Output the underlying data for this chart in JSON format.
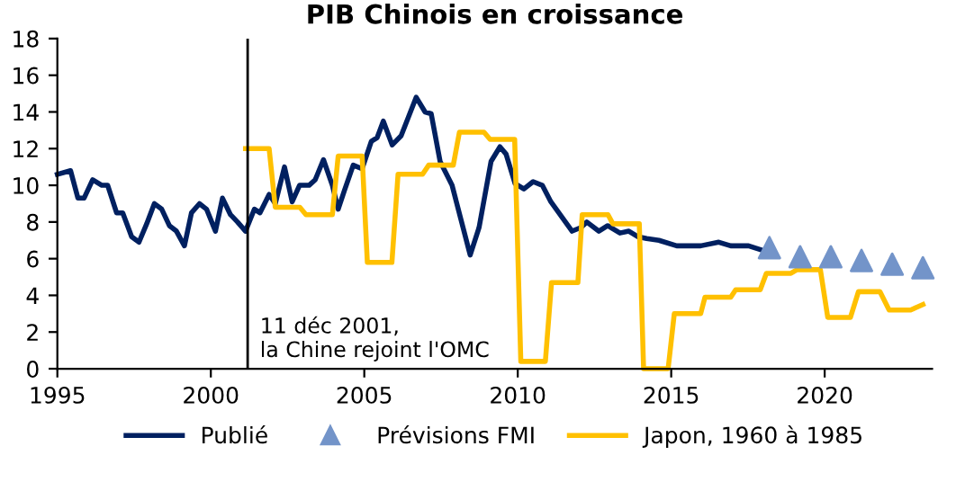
{
  "chart_data": {
    "type": "line",
    "title": "PIB Chinois en croissance",
    "xlim": [
      1995,
      2023.5
    ],
    "xticks": [
      1995,
      2000,
      2005,
      2010,
      2015,
      2020
    ],
    "ylim": [
      0,
      18
    ],
    "yticks": [
      0,
      2,
      4,
      6,
      8,
      10,
      12,
      14,
      16,
      18
    ],
    "grid": false,
    "legend": "bottom",
    "ref_lines": [
      {
        "axis": "x",
        "value": 2001.2,
        "label": "11 déc 2001,\nla Chine rejoint l'OMC",
        "color": "#000000"
      }
    ],
    "series": [
      {
        "name": "Publié",
        "color": "#002060",
        "marker": "none",
        "x": [
          1995.0,
          1995.43,
          1995.67,
          1995.87,
          1996.15,
          1996.45,
          1996.64,
          1996.93,
          1997.13,
          1997.42,
          1997.66,
          1997.91,
          1998.16,
          1998.4,
          1998.65,
          1998.88,
          1999.14,
          1999.37,
          1999.63,
          1999.86,
          2000.15,
          2000.38,
          2000.64,
          2000.87,
          2001.13,
          2001.42,
          2001.6,
          2001.9,
          2002.1,
          2002.4,
          2002.65,
          2002.89,
          2003.2,
          2003.4,
          2003.67,
          2003.96,
          2004.15,
          2004.35,
          2004.64,
          2004.93,
          2005.23,
          2005.42,
          2005.62,
          2005.91,
          2006.2,
          2006.69,
          2006.98,
          2007.18,
          2007.47,
          2007.86,
          2008.45,
          2008.74,
          2009.13,
          2009.42,
          2009.62,
          2009.91,
          2010.2,
          2010.5,
          2010.8,
          2011.08,
          2011.47,
          2011.77,
          2012.06,
          2012.25,
          2012.64,
          2012.93,
          2013.33,
          2013.62,
          2013.91,
          2014.2,
          2014.6,
          2015.18,
          2015.96,
          2016.55,
          2016.94,
          2017.52,
          2017.9
        ],
        "values": [
          10.6,
          10.8,
          9.3,
          9.3,
          10.3,
          10.0,
          10.0,
          8.5,
          8.5,
          7.2,
          6.9,
          7.9,
          9.0,
          8.7,
          7.8,
          7.5,
          6.7,
          8.5,
          9.0,
          8.7,
          7.5,
          9.3,
          8.4,
          8.0,
          7.5,
          8.7,
          8.5,
          9.5,
          9.0,
          11.0,
          9.1,
          10.0,
          10.0,
          10.3,
          11.4,
          10.0,
          8.7,
          9.7,
          11.1,
          10.9,
          12.4,
          12.6,
          13.5,
          12.2,
          12.7,
          14.8,
          14.0,
          13.9,
          11.3,
          10.0,
          6.2,
          7.7,
          11.3,
          12.1,
          11.7,
          10.1,
          9.8,
          10.2,
          10.0,
          9.1,
          8.2,
          7.5,
          7.7,
          8.0,
          7.5,
          7.8,
          7.4,
          7.5,
          7.2,
          7.1,
          7.0,
          6.7,
          6.7,
          6.9,
          6.7,
          6.7,
          6.5
        ]
      },
      {
        "name": "Prévisions FMI",
        "type": "scatter",
        "color": "#7394c9",
        "marker": "triangle",
        "x": [
          2018.2,
          2019.2,
          2020.2,
          2021.2,
          2022.2,
          2023.2
        ],
        "values": [
          6.6,
          6.1,
          6.1,
          5.9,
          5.7,
          5.5
        ]
      },
      {
        "name": "Japon, 1960 à 1985",
        "color": "#ffc000",
        "marker": "none",
        "x": [
          2001.13,
          2001.9,
          2002.1,
          2002.9,
          2003.1,
          2003.96,
          2004.15,
          2004.93,
          2005.1,
          2005.9,
          2006.1,
          2006.9,
          2007.1,
          2007.9,
          2008.1,
          2008.9,
          2009.1,
          2009.9,
          2010.1,
          2010.9,
          2011.1,
          2011.96,
          2012.1,
          2012.94,
          2013.1,
          2013.96,
          2014.1,
          2014.9,
          2015.1,
          2015.96,
          2016.1,
          2016.94,
          2017.1,
          2017.9,
          2018.1,
          2018.9,
          2019.1,
          2019.86,
          2020.1,
          2020.84,
          2021.1,
          2021.8,
          2022.1,
          2022.8,
          2023.2
        ],
        "values": [
          12.0,
          12.0,
          8.8,
          8.8,
          8.4,
          8.4,
          11.6,
          11.6,
          5.8,
          5.8,
          10.6,
          10.6,
          11.1,
          11.1,
          12.9,
          12.9,
          12.5,
          12.5,
          0.4,
          0.4,
          4.7,
          4.7,
          8.4,
          8.4,
          7.9,
          7.9,
          0,
          0,
          3.0,
          3.0,
          3.9,
          3.9,
          4.3,
          4.3,
          5.2,
          5.2,
          5.4,
          5.4,
          2.8,
          2.8,
          4.2,
          4.2,
          3.2,
          3.2,
          3.5
        ]
      }
    ]
  }
}
